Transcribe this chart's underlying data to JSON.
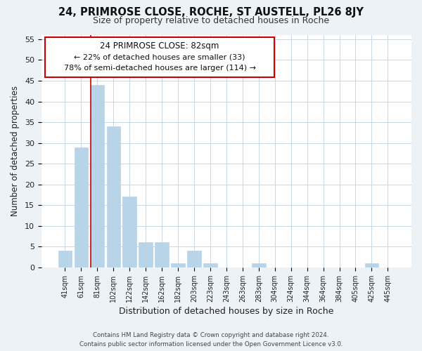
{
  "title_line1": "24, PRIMROSE CLOSE, ROCHE, ST AUSTELL, PL26 8JY",
  "title_line2": "Size of property relative to detached houses in Roche",
  "xlabel": "Distribution of detached houses by size in Roche",
  "ylabel": "Number of detached properties",
  "footer_line1": "Contains HM Land Registry data © Crown copyright and database right 2024.",
  "footer_line2": "Contains public sector information licensed under the Open Government Licence v3.0.",
  "bar_labels": [
    "41sqm",
    "61sqm",
    "81sqm",
    "102sqm",
    "122sqm",
    "142sqm",
    "162sqm",
    "182sqm",
    "203sqm",
    "223sqm",
    "243sqm",
    "263sqm",
    "283sqm",
    "304sqm",
    "324sqm",
    "344sqm",
    "364sqm",
    "384sqm",
    "405sqm",
    "425sqm",
    "445sqm"
  ],
  "bar_values": [
    4,
    29,
    44,
    34,
    17,
    6,
    6,
    1,
    4,
    1,
    0,
    0,
    1,
    0,
    0,
    0,
    0,
    0,
    0,
    1,
    0
  ],
  "bar_color": "#b8d4e8",
  "bar_edge_color": "#b8d4e8",
  "highlight_bar_index": 2,
  "highlight_line_color": "#cc0000",
  "ann_line1": "24 PRIMROSE CLOSE: 82sqm",
  "ann_line2": "← 22% of detached houses are smaller (33)",
  "ann_line3": "78% of semi-detached houses are larger (114) →",
  "ylim": [
    0,
    56
  ],
  "yticks": [
    0,
    5,
    10,
    15,
    20,
    25,
    30,
    35,
    40,
    45,
    50,
    55
  ],
  "background_color": "#edf2f7",
  "plot_bg_color": "#ffffff",
  "grid_color": "#c8d8e8"
}
